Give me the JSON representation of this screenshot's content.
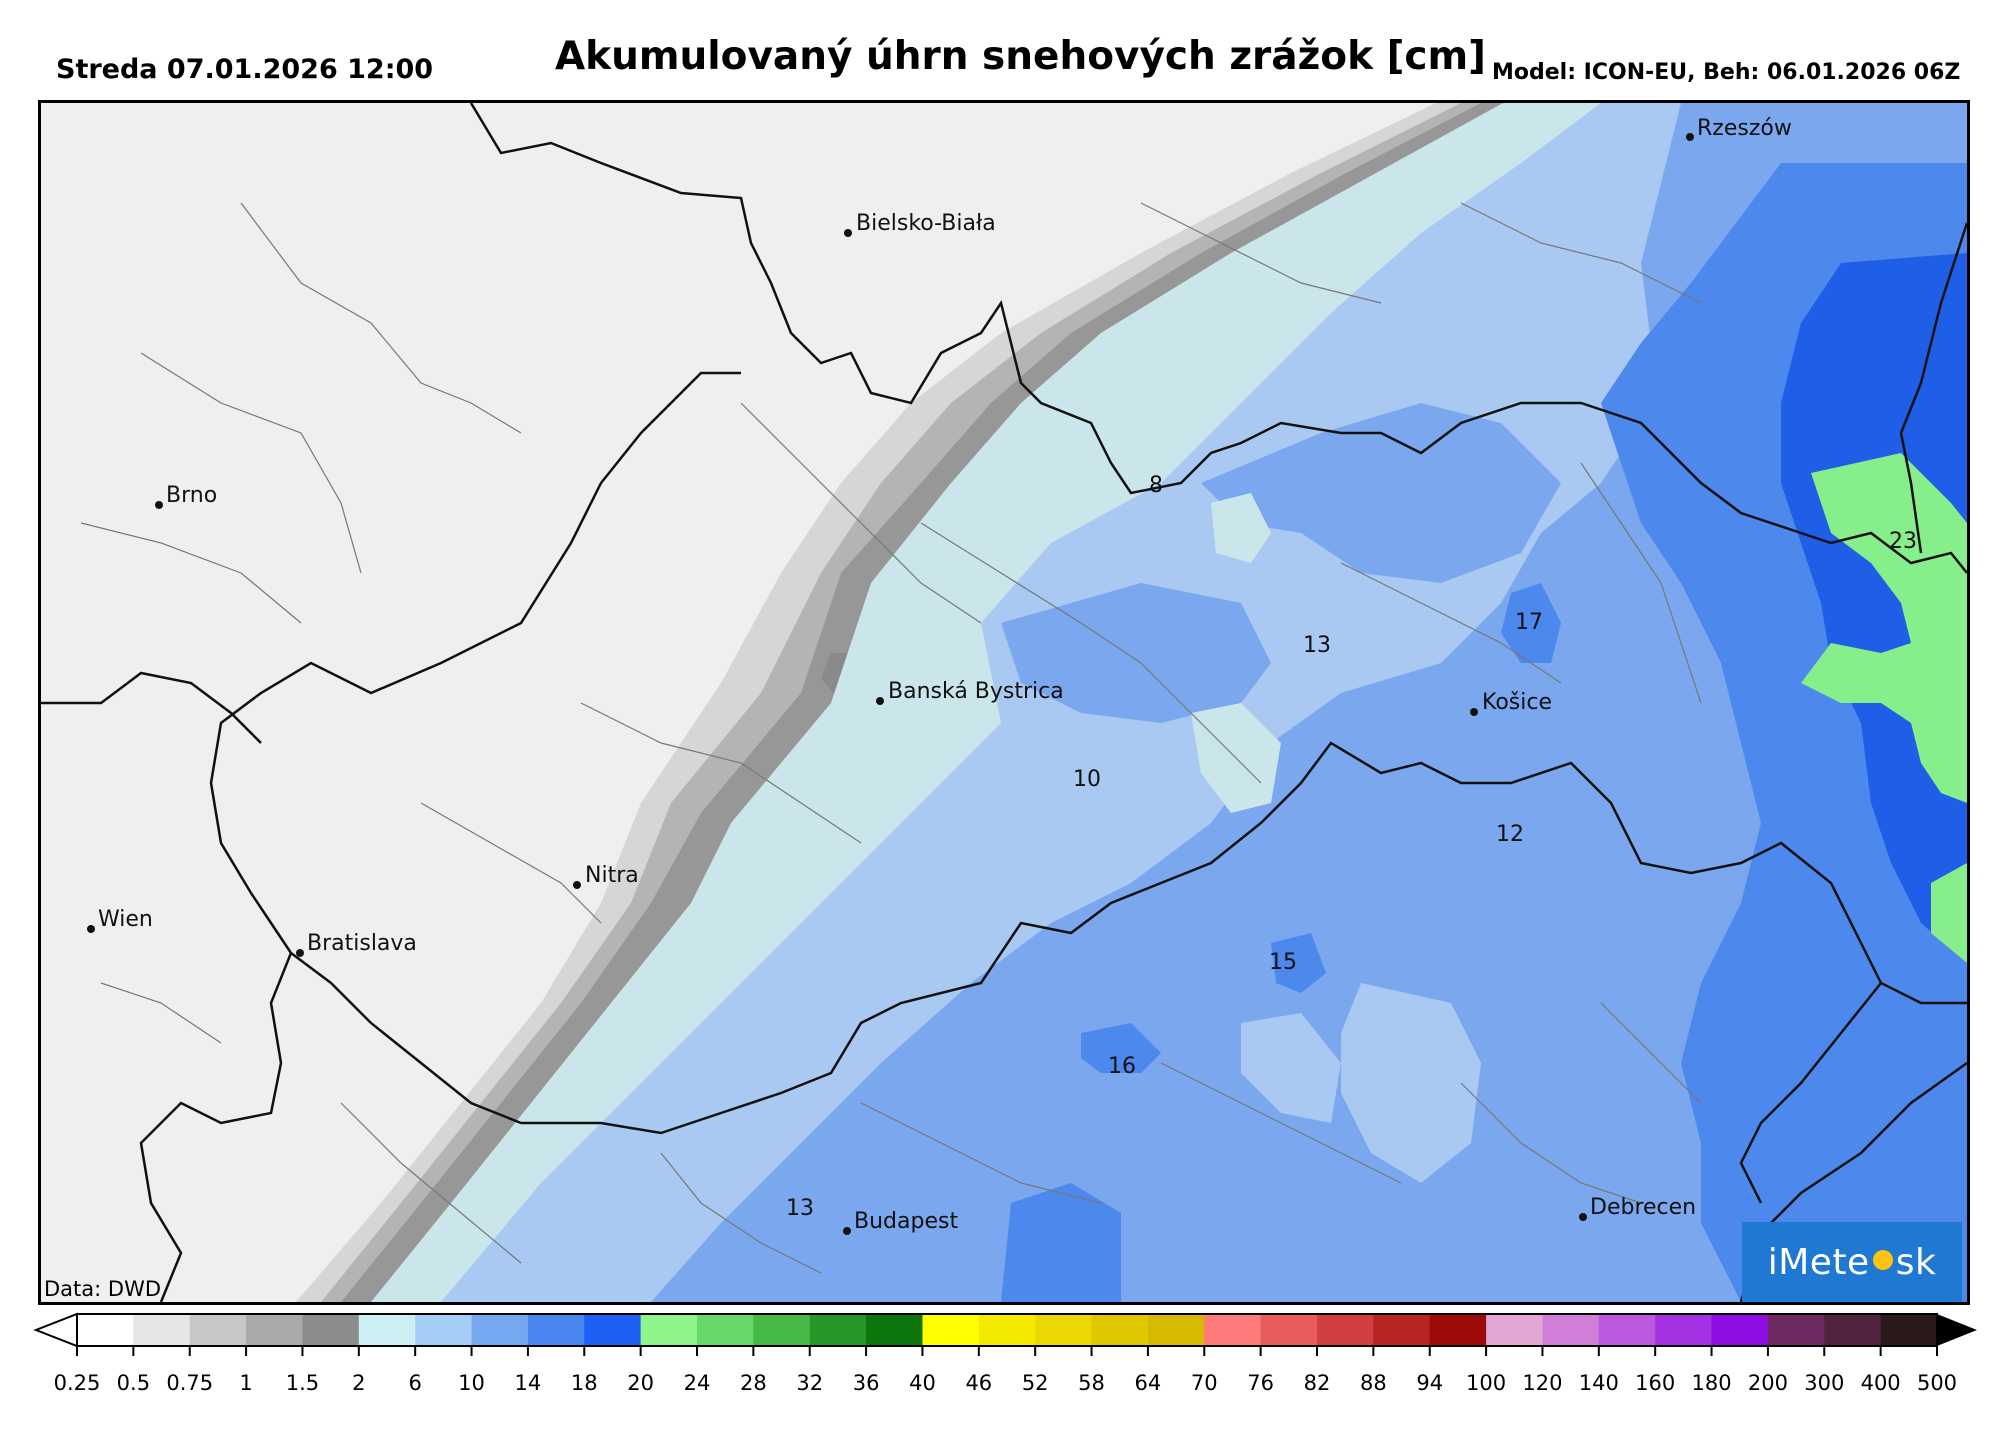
{
  "header": {
    "date": "Streda 07.01.2026 12:00",
    "title": "Akumulovaný úhrn snehových zrážok [cm]",
    "model": "Model: ICON-EU, Beh: 06.01.2026 06Z"
  },
  "map": {
    "source": "Data: DWD",
    "logo": {
      "text_left": "iMete",
      "text_right": "sk",
      "bg": "#1f78d1",
      "sun": "#ffc20e"
    },
    "cities": [
      {
        "id": "rzeszow",
        "name": "Rzeszów"
      },
      {
        "id": "bielsko-biala",
        "name": "Bielsko-Biała"
      },
      {
        "id": "brno",
        "name": "Brno"
      },
      {
        "id": "banska-bystrica",
        "name": "Banská Bystrica"
      },
      {
        "id": "kosice",
        "name": "Košice"
      },
      {
        "id": "nitra",
        "name": "Nitra"
      },
      {
        "id": "wien",
        "name": "Wien"
      },
      {
        "id": "bratislava",
        "name": "Bratislava"
      },
      {
        "id": "budapest",
        "name": "Budapest"
      },
      {
        "id": "debrecen",
        "name": "Debrecen"
      }
    ],
    "values": [
      "8",
      "23",
      "17",
      "13",
      "10",
      "12",
      "15",
      "16",
      "13"
    ]
  },
  "colorbar": {
    "ticks": [
      "0.25",
      "0.5",
      "0.75",
      "1",
      "1.5",
      "2",
      "6",
      "10",
      "14",
      "18",
      "20",
      "24",
      "28",
      "32",
      "36",
      "40",
      "46",
      "52",
      "58",
      "64",
      "70",
      "76",
      "82",
      "88",
      "94",
      "100",
      "120",
      "140",
      "160",
      "180",
      "200",
      "300",
      "400",
      "500"
    ],
    "colors": [
      "#ffffff",
      "#e6e6e6",
      "#c8c8c8",
      "#aaaaaa",
      "#8c8c8c",
      "#cdeef2",
      "#a6cdf5",
      "#76a8ef",
      "#4a86f0",
      "#1e5ff5",
      "#8ef58a",
      "#68d968",
      "#46b846",
      "#289528",
      "#0c760c",
      "#ffff00",
      "#f4ea00",
      "#ead800",
      "#e0c800",
      "#d6b900",
      "#ff7a7a",
      "#e85c5c",
      "#d04040",
      "#b82424",
      "#9e0a0a",
      "#e0a8d2",
      "#d07ed8",
      "#bb58de",
      "#a532e2",
      "#8d0ee4",
      "#6e2a60",
      "#52223e",
      "#2a1a1c"
    ],
    "over_color": "#000000",
    "under_color": "#ffffff"
  }
}
